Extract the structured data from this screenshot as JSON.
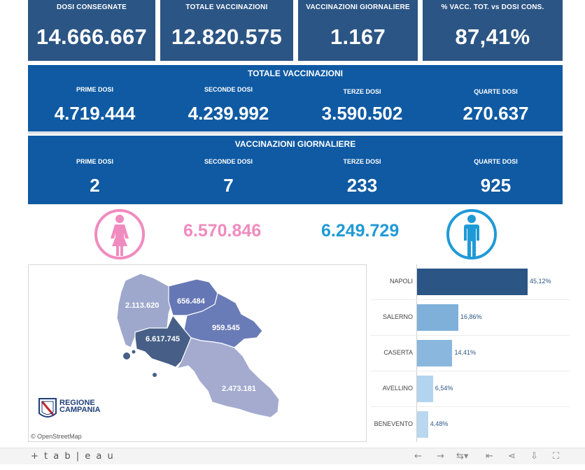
{
  "kpis": [
    {
      "label": "DOSI  CONSEGNATE",
      "value": "14.666.667"
    },
    {
      "label": "TOTALE VACCINAZIONI",
      "value": "12.820.575"
    },
    {
      "label": "VACCINAZIONI GIORNALIERE",
      "value": "1.167"
    },
    {
      "label": "% VACC. TOT. vs DOSI CONS.",
      "value": "87,41%"
    }
  ],
  "totals": {
    "title": "TOTALE VACCINAZIONI",
    "cols": [
      {
        "label": "PRIME DOSI",
        "value": "4.719.444"
      },
      {
        "label": "SECONDE DOSI",
        "value": "4.239.992"
      },
      {
        "label": "TERZE DOSI",
        "value": "3.590.502"
      },
      {
        "label": "QUARTE DOSI",
        "value": "270.637"
      }
    ]
  },
  "daily": {
    "title": "VACCINAZIONI GIORNALIERE",
    "cols": [
      {
        "label": "PRIME DOSI",
        "value": "2"
      },
      {
        "label": "SECONDE DOSI",
        "value": "7"
      },
      {
        "label": "TERZE DOSI",
        "value": "233"
      },
      {
        "label": "QUARTE DOSI",
        "value": "925"
      }
    ]
  },
  "gender": {
    "female_value": "6.570.846",
    "male_value": "6.249.729",
    "female_color": "#f08bbf",
    "male_color": "#1f9ad6"
  },
  "map": {
    "provinces": [
      {
        "name": "Caserta",
        "value": "2.113.620",
        "color": "#9ea8cc"
      },
      {
        "name": "Benevento",
        "value": "656.484",
        "color": "#6577b4"
      },
      {
        "name": "Avellino",
        "value": "959.545",
        "color": "#6a7cb8"
      },
      {
        "name": "Napoli",
        "value": "6.617.745",
        "color": "#475f86"
      },
      {
        "name": "Salerno",
        "value": "2.473.181",
        "color": "#a4abcf"
      }
    ],
    "logo_line1": "REGIONE",
    "logo_line2": "CAMPANIA",
    "attribution": "© OpenStreetMap"
  },
  "chart_data": {
    "type": "bar",
    "orientation": "horizontal",
    "categories": [
      "NAPOLI",
      "SALERNO",
      "CASERTA",
      "AVELLINO",
      "BENEVENTO"
    ],
    "values": [
      45.12,
      16.86,
      14.41,
      6.54,
      4.48
    ],
    "value_labels": [
      "45,12%",
      "16,86%",
      "14,41%",
      "6,54%",
      "4,48%"
    ],
    "colors": [
      "#2b5584",
      "#7fb0da",
      "#8ab7de",
      "#b3d4ee",
      "#b9d8f0"
    ],
    "xlim": [
      0,
      45.12
    ]
  },
  "footer": {
    "brand": "+ t a b | e a u",
    "icons": [
      "undo-icon",
      "redo-icon",
      "revert-icon",
      "reset-icon",
      "share-icon",
      "download-icon",
      "fullscreen-icon"
    ]
  }
}
